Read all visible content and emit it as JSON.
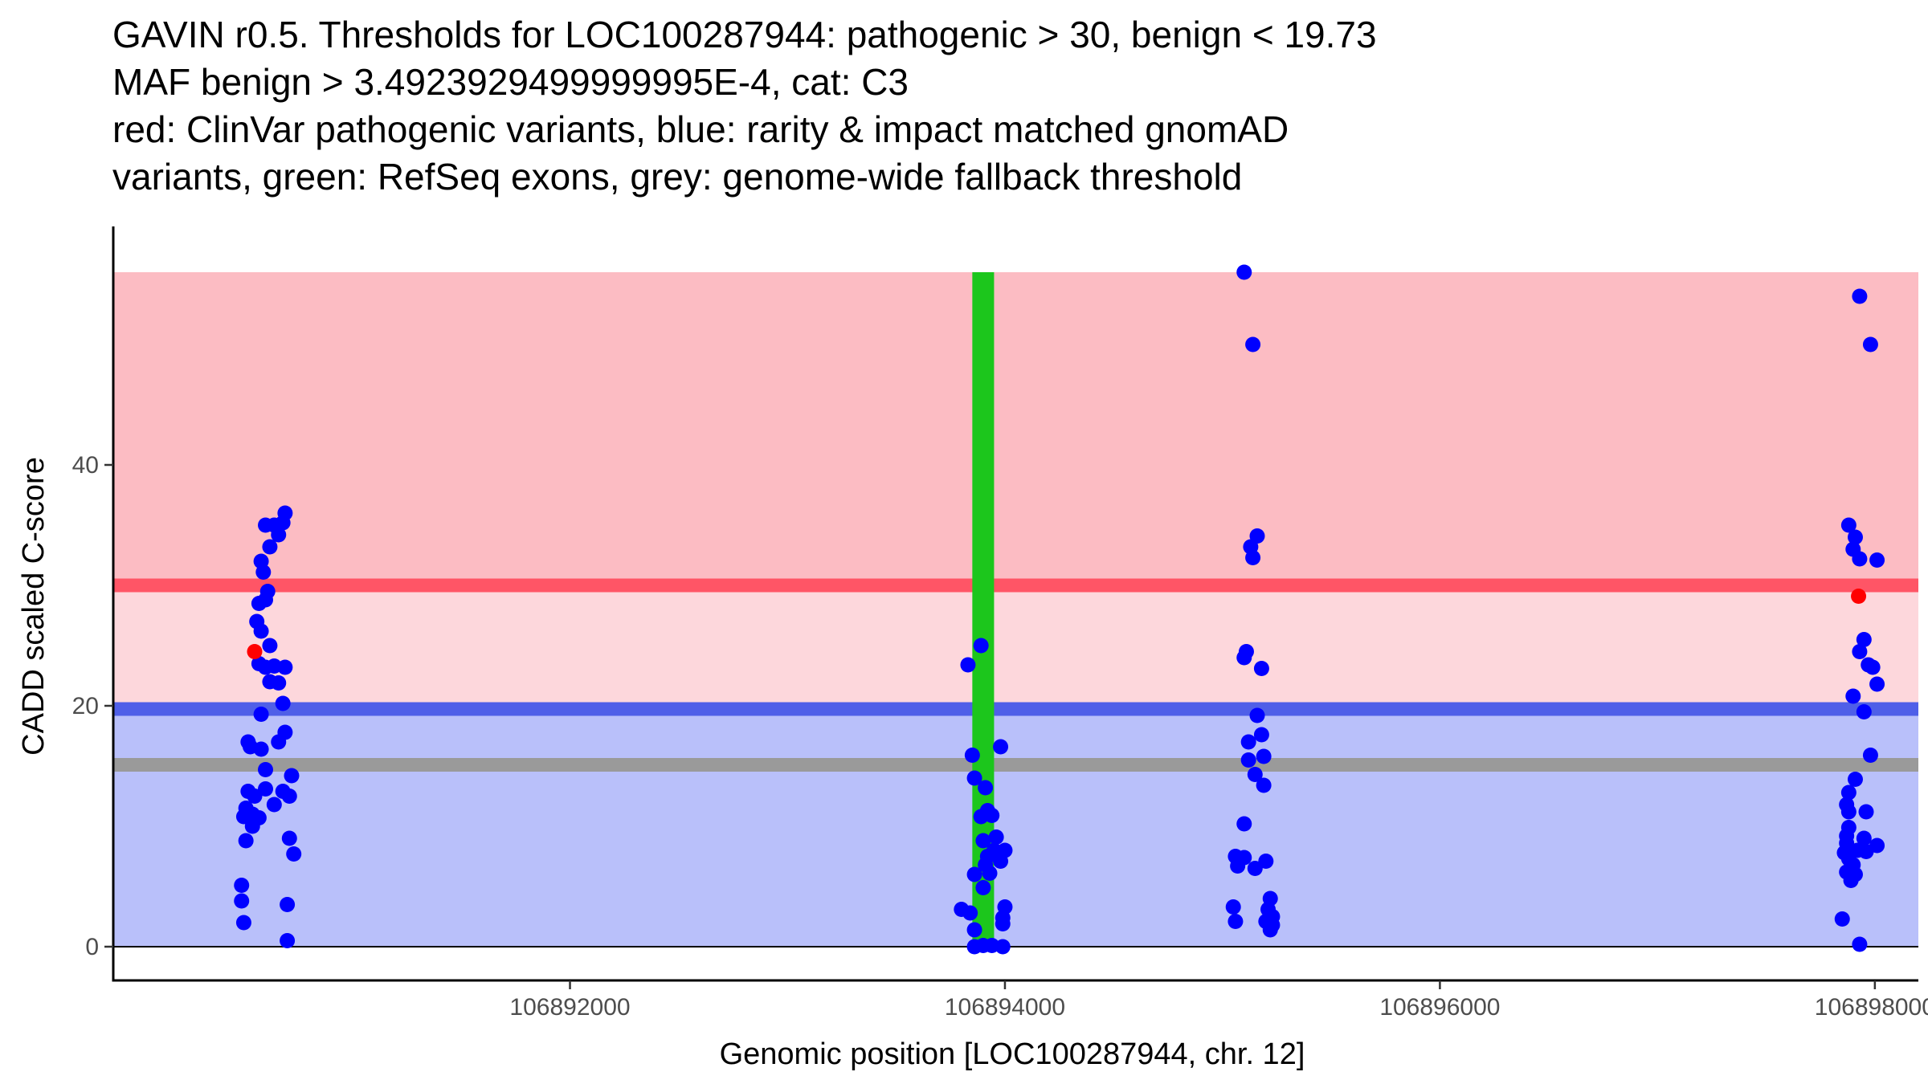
{
  "chart_data": {
    "type": "scatter",
    "title_lines": [
      "GAVIN r0.5. Thresholds for LOC100287944: pathogenic > 30, benign < 19.73",
      "MAF benign > 3.4923929499999995E-4, cat: C3",
      "red: ClinVar pathogenic variants, blue: rarity & impact matched gnomAD",
      "variants, green: RefSeq exons, grey: genome-wide fallback threshold"
    ],
    "xlabel": "Genomic position [LOC100287944, chr. 12]",
    "ylabel": "CADD scaled C-score",
    "xlim": [
      106889900,
      106898200
    ],
    "ylim": [
      -2.8,
      59.8
    ],
    "x_ticks": [
      {
        "value": 106892000,
        "label": "106892000"
      },
      {
        "value": 106894000,
        "label": "106894000"
      },
      {
        "value": 106896000,
        "label": "106896000"
      },
      {
        "value": 106898000,
        "label": "106898000"
      }
    ],
    "y_ticks": [
      {
        "value": 0,
        "label": "0"
      },
      {
        "value": 20,
        "label": "20"
      },
      {
        "value": 40,
        "label": "40"
      }
    ],
    "bands": [
      {
        "name": "pathogenic region",
        "y0": 30,
        "y1": 56,
        "color": "#fcbcc3"
      },
      {
        "name": "intermediate region",
        "y0": 19.73,
        "y1": 30,
        "color": "#fdd7dc"
      },
      {
        "name": "benign region",
        "y0": 0,
        "y1": 19.73,
        "color": "#b9c0fa"
      }
    ],
    "threshold_lines": [
      {
        "name": "pathogenic threshold",
        "y": 30,
        "color": "#ff5566"
      },
      {
        "name": "benign threshold",
        "y": 19.73,
        "color": "#4f5fe8"
      },
      {
        "name": "genome-wide fallback threshold",
        "y": 15.1,
        "color": "#9a9a9a"
      }
    ],
    "exons": [
      {
        "name": "RefSeq exon",
        "x0": 106893850,
        "x1": 106893950,
        "y0": 0,
        "y1": 56,
        "color": "#1cc61c"
      }
    ],
    "series": [
      {
        "name": "ClinVar pathogenic variants",
        "color": "#ff0000",
        "points": [
          {
            "x": 106890550,
            "y": 24.5
          },
          {
            "x": 106897925,
            "y": 29.1
          }
        ]
      },
      {
        "name": "rarity & impact matched gnomAD variants",
        "color": "#0000ff",
        "points": [
          {
            "x": 106890690,
            "y": 36.0
          },
          {
            "x": 106890680,
            "y": 35.2
          },
          {
            "x": 106890640,
            "y": 35.0
          },
          {
            "x": 106890600,
            "y": 35.0
          },
          {
            "x": 106890660,
            "y": 34.2
          },
          {
            "x": 106890620,
            "y": 33.2
          },
          {
            "x": 106890580,
            "y": 32.0
          },
          {
            "x": 106890590,
            "y": 31.1
          },
          {
            "x": 106890610,
            "y": 29.5
          },
          {
            "x": 106890570,
            "y": 28.5
          },
          {
            "x": 106890600,
            "y": 28.8
          },
          {
            "x": 106890560,
            "y": 27.0
          },
          {
            "x": 106890580,
            "y": 26.2
          },
          {
            "x": 106890620,
            "y": 25.0
          },
          {
            "x": 106890570,
            "y": 23.5
          },
          {
            "x": 106890600,
            "y": 23.2
          },
          {
            "x": 106890640,
            "y": 23.3
          },
          {
            "x": 106890690,
            "y": 23.2
          },
          {
            "x": 106890620,
            "y": 22.0
          },
          {
            "x": 106890660,
            "y": 21.9
          },
          {
            "x": 106890680,
            "y": 20.2
          },
          {
            "x": 106890580,
            "y": 19.3
          },
          {
            "x": 106890690,
            "y": 17.8
          },
          {
            "x": 106890520,
            "y": 17.0
          },
          {
            "x": 106890660,
            "y": 17.0
          },
          {
            "x": 106890530,
            "y": 16.6
          },
          {
            "x": 106890580,
            "y": 16.4
          },
          {
            "x": 106890600,
            "y": 14.7
          },
          {
            "x": 106890720,
            "y": 14.2
          },
          {
            "x": 106890520,
            "y": 12.9
          },
          {
            "x": 106890550,
            "y": 12.5
          },
          {
            "x": 106890600,
            "y": 13.1
          },
          {
            "x": 106890680,
            "y": 12.9
          },
          {
            "x": 106890710,
            "y": 12.5
          },
          {
            "x": 106890640,
            "y": 11.8
          },
          {
            "x": 106890510,
            "y": 11.5
          },
          {
            "x": 106890540,
            "y": 11.0
          },
          {
            "x": 106890570,
            "y": 10.7
          },
          {
            "x": 106890500,
            "y": 10.8
          },
          {
            "x": 106890540,
            "y": 10.0
          },
          {
            "x": 106890710,
            "y": 9.0
          },
          {
            "x": 106890510,
            "y": 8.8
          },
          {
            "x": 106890730,
            "y": 7.7
          },
          {
            "x": 106890490,
            "y": 5.1
          },
          {
            "x": 106890490,
            "y": 3.8
          },
          {
            "x": 106890700,
            "y": 3.5
          },
          {
            "x": 106890500,
            "y": 2.0
          },
          {
            "x": 106890700,
            "y": 0.5
          },
          {
            "x": 106893890,
            "y": 25.0
          },
          {
            "x": 106893830,
            "y": 23.4
          },
          {
            "x": 106893980,
            "y": 16.6
          },
          {
            "x": 106893850,
            "y": 15.9
          },
          {
            "x": 106893860,
            "y": 14.0
          },
          {
            "x": 106893910,
            "y": 13.2
          },
          {
            "x": 106893920,
            "y": 11.3
          },
          {
            "x": 106893890,
            "y": 10.8
          },
          {
            "x": 106893940,
            "y": 10.9
          },
          {
            "x": 106893960,
            "y": 9.1
          },
          {
            "x": 106893900,
            "y": 8.8
          },
          {
            "x": 106893950,
            "y": 8.0
          },
          {
            "x": 106893920,
            "y": 7.5
          },
          {
            "x": 106894000,
            "y": 8.0
          },
          {
            "x": 106893980,
            "y": 7.1
          },
          {
            "x": 106893910,
            "y": 6.8
          },
          {
            "x": 106893860,
            "y": 6.0
          },
          {
            "x": 106893930,
            "y": 6.1
          },
          {
            "x": 106893900,
            "y": 4.9
          },
          {
            "x": 106893800,
            "y": 3.1
          },
          {
            "x": 106893840,
            "y": 2.8
          },
          {
            "x": 106894000,
            "y": 3.3
          },
          {
            "x": 106893990,
            "y": 2.4
          },
          {
            "x": 106893990,
            "y": 1.9
          },
          {
            "x": 106893860,
            "y": 1.4
          },
          {
            "x": 106893860,
            "y": 0.0
          },
          {
            "x": 106893900,
            "y": 0.1
          },
          {
            "x": 106893940,
            "y": 0.1
          },
          {
            "x": 106893990,
            "y": 0.0
          },
          {
            "x": 106895100,
            "y": 56.0
          },
          {
            "x": 106895140,
            "y": 50.0
          },
          {
            "x": 106895160,
            "y": 34.1
          },
          {
            "x": 106895130,
            "y": 33.2
          },
          {
            "x": 106895140,
            "y": 32.3
          },
          {
            "x": 106895110,
            "y": 24.5
          },
          {
            "x": 106895100,
            "y": 24.0
          },
          {
            "x": 106895180,
            "y": 23.1
          },
          {
            "x": 106895160,
            "y": 19.2
          },
          {
            "x": 106895180,
            "y": 17.6
          },
          {
            "x": 106895120,
            "y": 17.0
          },
          {
            "x": 106895190,
            "y": 15.8
          },
          {
            "x": 106895120,
            "y": 15.5
          },
          {
            "x": 106895150,
            "y": 14.3
          },
          {
            "x": 106895190,
            "y": 13.4
          },
          {
            "x": 106895100,
            "y": 10.2
          },
          {
            "x": 106895060,
            "y": 7.5
          },
          {
            "x": 106895100,
            "y": 7.4
          },
          {
            "x": 106895200,
            "y": 7.1
          },
          {
            "x": 106895070,
            "y": 6.7
          },
          {
            "x": 106895150,
            "y": 6.5
          },
          {
            "x": 106895220,
            "y": 4.0
          },
          {
            "x": 106895050,
            "y": 3.3
          },
          {
            "x": 106895210,
            "y": 3.1
          },
          {
            "x": 106895230,
            "y": 2.5
          },
          {
            "x": 106895060,
            "y": 2.1
          },
          {
            "x": 106895200,
            "y": 2.1
          },
          {
            "x": 106895230,
            "y": 1.8
          },
          {
            "x": 106895220,
            "y": 1.4
          },
          {
            "x": 106897930,
            "y": 54.0
          },
          {
            "x": 106897980,
            "y": 50.0
          },
          {
            "x": 106897880,
            "y": 35.0
          },
          {
            "x": 106897910,
            "y": 34.0
          },
          {
            "x": 106897900,
            "y": 33.0
          },
          {
            "x": 106897930,
            "y": 32.2
          },
          {
            "x": 106898010,
            "y": 32.1
          },
          {
            "x": 106897950,
            "y": 25.5
          },
          {
            "x": 106897930,
            "y": 24.5
          },
          {
            "x": 106897970,
            "y": 23.4
          },
          {
            "x": 106897990,
            "y": 23.2
          },
          {
            "x": 106898010,
            "y": 21.8
          },
          {
            "x": 106897900,
            "y": 20.8
          },
          {
            "x": 106897950,
            "y": 19.5
          },
          {
            "x": 106897980,
            "y": 15.9
          },
          {
            "x": 106897910,
            "y": 13.9
          },
          {
            "x": 106897880,
            "y": 12.8
          },
          {
            "x": 106897870,
            "y": 11.8
          },
          {
            "x": 106897880,
            "y": 11.2
          },
          {
            "x": 106897960,
            "y": 11.2
          },
          {
            "x": 106897880,
            "y": 9.9
          },
          {
            "x": 106897870,
            "y": 9.2
          },
          {
            "x": 106897950,
            "y": 9.0
          },
          {
            "x": 106897870,
            "y": 8.6
          },
          {
            "x": 106898010,
            "y": 8.4
          },
          {
            "x": 106897920,
            "y": 8.0
          },
          {
            "x": 106897860,
            "y": 7.8
          },
          {
            "x": 106897880,
            "y": 7.3
          },
          {
            "x": 106897960,
            "y": 7.9
          },
          {
            "x": 106897900,
            "y": 6.8
          },
          {
            "x": 106897870,
            "y": 6.2
          },
          {
            "x": 106897910,
            "y": 6.0
          },
          {
            "x": 106897890,
            "y": 5.5
          },
          {
            "x": 106897850,
            "y": 2.3
          },
          {
            "x": 106897930,
            "y": 0.2
          }
        ]
      }
    ]
  }
}
